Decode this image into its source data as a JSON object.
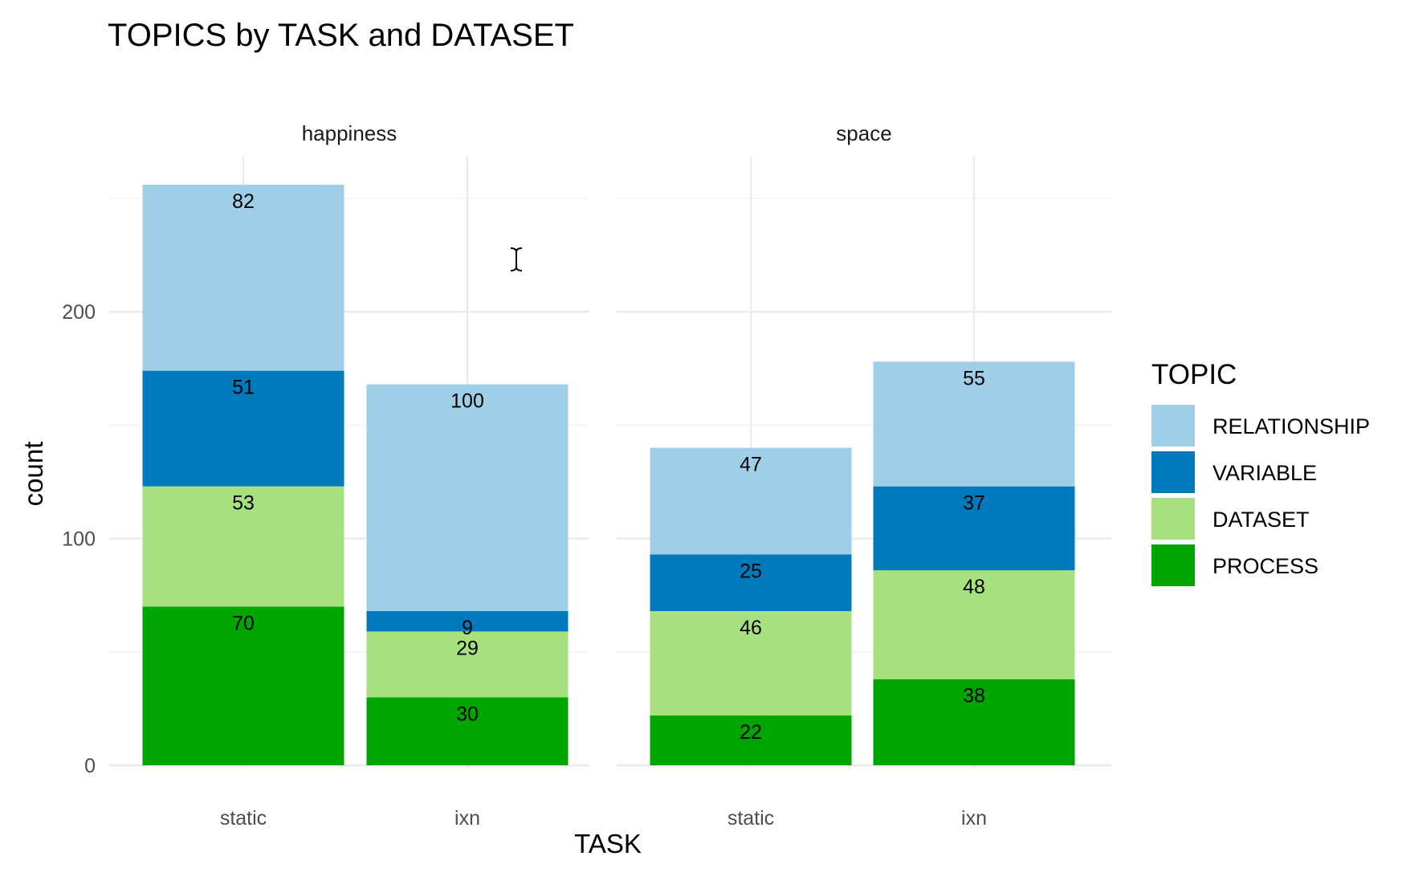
{
  "chart_data": {
    "type": "bar",
    "stacked": true,
    "title": "TOPICS by TASK and DATASET",
    "xlabel": "TASK",
    "ylabel": "count",
    "ylim": [
      0,
      260
    ],
    "y_ticks": [
      0,
      100,
      200
    ],
    "grid": true,
    "legend": {
      "title": "TOPIC",
      "position": "right"
    },
    "categories": [
      "static",
      "ixn"
    ],
    "series_order": [
      "PROCESS",
      "DATASET",
      "VARIABLE",
      "RELATIONSHIP"
    ],
    "series_colors": {
      "RELATIONSHIP": "#9ecfe6",
      "VARIABLE": "#0079bd",
      "DATASET": "#a6e07f",
      "PROCESS": "#00a600"
    },
    "panels": [
      {
        "label": "happiness",
        "series": [
          {
            "name": "PROCESS",
            "values": [
              70,
              30
            ]
          },
          {
            "name": "DATASET",
            "values": [
              53,
              29
            ]
          },
          {
            "name": "VARIABLE",
            "values": [
              51,
              9
            ]
          },
          {
            "name": "RELATIONSHIP",
            "values": [
              82,
              100
            ]
          }
        ]
      },
      {
        "label": "space",
        "series": [
          {
            "name": "PROCESS",
            "values": [
              22,
              38
            ]
          },
          {
            "name": "DATASET",
            "values": [
              46,
              48
            ]
          },
          {
            "name": "VARIABLE",
            "values": [
              25,
              37
            ]
          },
          {
            "name": "RELATIONSHIP",
            "values": [
              47,
              55
            ]
          }
        ]
      }
    ],
    "legend_items": [
      "RELATIONSHIP",
      "VARIABLE",
      "DATASET",
      "PROCESS"
    ]
  }
}
